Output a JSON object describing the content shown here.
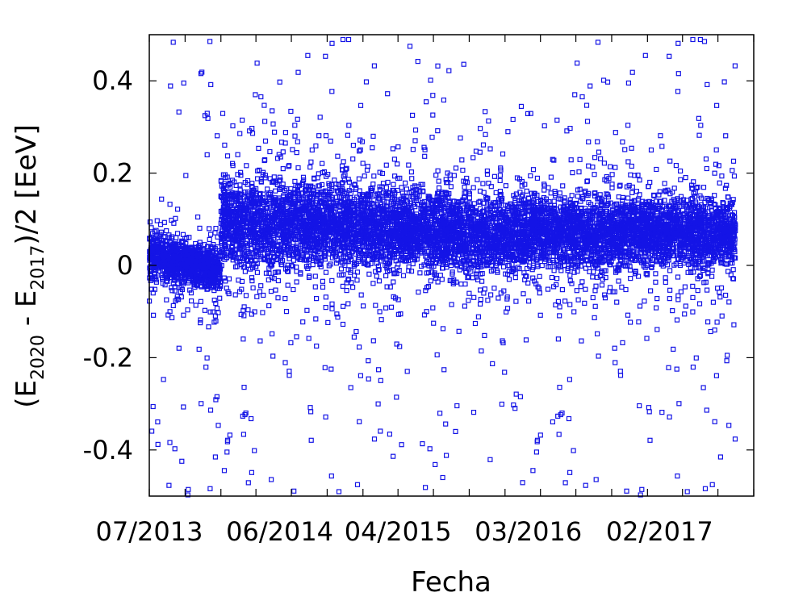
{
  "chart_data": {
    "type": "scatter",
    "title": "",
    "xlabel": "Fecha",
    "ylabel": "(E2020 - E2017)/2 [EeV]",
    "ylabel_parts": {
      "open": "(E",
      "sub1": "2020",
      "mid": " - E",
      "sub2": "2017",
      "close": ")/2 [EeV]"
    },
    "x_axis": {
      "type": "date",
      "range": [
        "2013-07-01",
        "2017-10-01"
      ],
      "tick_labels": [
        "07/2013",
        "06/2014",
        "04/2015",
        "03/2016",
        "02/2017"
      ],
      "tick_dates": [
        "2013-07-01",
        "2014-06-01",
        "2015-04-01",
        "2016-03-01",
        "2017-02-01"
      ]
    },
    "y_axis": {
      "range": [
        -0.5,
        0.5
      ],
      "ticks": [
        -0.4,
        -0.2,
        0,
        0.2,
        0.4
      ],
      "tick_labels": [
        "-0.4",
        "-0.2",
        "0",
        "0.2",
        "0.4"
      ]
    },
    "series": [
      {
        "marker": "open-square",
        "color": "#1414e6",
        "segments": [
          {
            "start": "2013-07-01",
            "end": "2013-12-31",
            "center_start": 0.02,
            "center_end": -0.01,
            "band_half_width": 0.05
          },
          {
            "start": "2014-01-01",
            "end": "2015-01-31",
            "center_start": 0.095,
            "center_end": 0.085,
            "band_half_width": 0.1
          },
          {
            "start": "2015-02-01",
            "end": "2016-02-29",
            "center_start": 0.08,
            "center_end": 0.065,
            "band_half_width": 0.09
          },
          {
            "start": "2016-03-01",
            "end": "2017-10-01",
            "center_start": 0.075,
            "center_end": 0.07,
            "band_half_width": 0.08
          }
        ],
        "outlier_range": [
          -0.5,
          0.5
        ]
      }
    ],
    "grid": false,
    "legend": "none"
  }
}
